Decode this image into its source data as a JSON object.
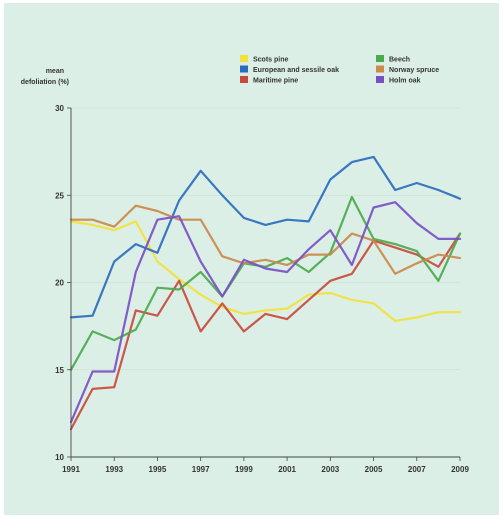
{
  "chart_data": {
    "type": "line",
    "ylabel_line1": "mean",
    "ylabel_line2": "defoliation (%)",
    "xlabel": "",
    "x": [
      1991,
      1992,
      1993,
      1994,
      1995,
      1996,
      1997,
      1998,
      1999,
      2000,
      2001,
      2002,
      2003,
      2004,
      2005,
      2006,
      2007,
      2008,
      2009
    ],
    "x_tick_values": [
      1991,
      1993,
      1995,
      1997,
      1999,
      2001,
      2003,
      2005,
      2007,
      2009
    ],
    "x_tick_labels": [
      "1991",
      "1993",
      "1995",
      "1997",
      "1999",
      "2001",
      "2003",
      "2005",
      "2007",
      "2009"
    ],
    "y_tick_values": [
      10,
      15,
      20,
      25,
      30
    ],
    "y_tick_labels": [
      "10",
      "15",
      "20",
      "25",
      "30"
    ],
    "ylim": [
      10,
      30
    ],
    "legend_position": "top-right",
    "series": [
      {
        "name": "Scots pine",
        "color": "#f2e23a",
        "values": [
          23.5,
          23.3,
          23.0,
          23.5,
          21.2,
          20.2,
          19.3,
          18.6,
          18.2,
          18.4,
          18.5,
          19.3,
          19.4,
          19.0,
          18.8,
          17.8,
          18.0,
          18.3,
          18.3
        ]
      },
      {
        "name": "European and sessile oak",
        "color": "#2a6cc0",
        "values": [
          18.0,
          18.1,
          21.2,
          22.2,
          21.7,
          24.7,
          26.4,
          25.0,
          23.7,
          23.3,
          23.6,
          23.5,
          25.9,
          26.9,
          27.2,
          25.3,
          25.7,
          25.3,
          24.8
        ]
      },
      {
        "name": "Maritime pine",
        "color": "#c84a3c",
        "values": [
          11.6,
          13.9,
          14.0,
          18.4,
          18.1,
          20.1,
          17.2,
          18.8,
          17.2,
          18.2,
          17.9,
          19.0,
          20.1,
          20.5,
          22.4,
          22.0,
          21.6,
          20.9,
          22.8
        ]
      },
      {
        "name": "Beech",
        "color": "#4aaa4e",
        "values": [
          15.0,
          17.2,
          16.7,
          17.3,
          19.7,
          19.6,
          20.6,
          19.2,
          21.1,
          20.9,
          21.4,
          20.6,
          21.7,
          24.9,
          22.5,
          22.2,
          21.8,
          20.1,
          22.8
        ]
      },
      {
        "name": "Norway spruce",
        "color": "#c98a4a",
        "values": [
          23.6,
          23.6,
          23.2,
          24.4,
          24.1,
          23.6,
          23.6,
          21.5,
          21.1,
          21.3,
          21.0,
          21.6,
          21.6,
          22.8,
          22.4,
          20.5,
          21.1,
          21.6,
          21.4
        ]
      },
      {
        "name": "Holm oak",
        "color": "#7a4fc6",
        "values": [
          12.0,
          14.9,
          14.9,
          20.6,
          23.6,
          23.8,
          21.2,
          19.2,
          21.3,
          20.8,
          20.6,
          21.9,
          23.0,
          21.0,
          24.3,
          24.6,
          23.4,
          22.5,
          22.5
        ]
      }
    ]
  }
}
